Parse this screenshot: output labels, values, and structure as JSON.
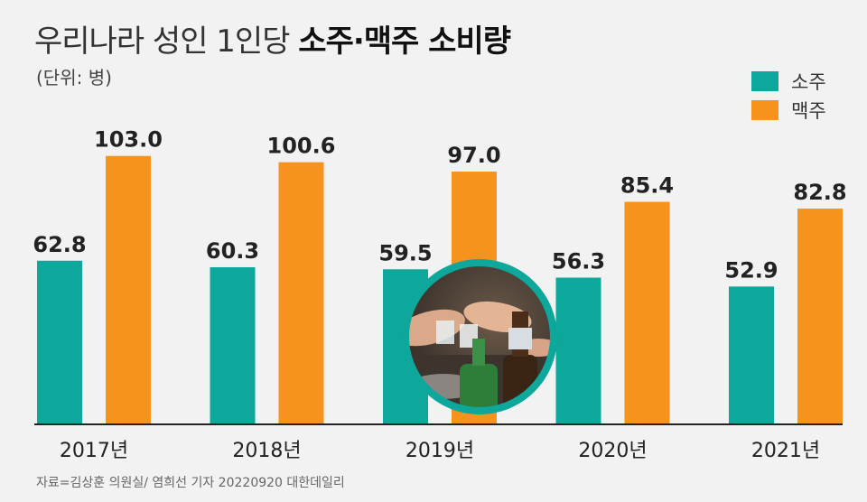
{
  "title": {
    "prefix": "우리나라 성인 1인당 ",
    "bold": "소주·맥주 소비량"
  },
  "unit": "(단위: 병)",
  "source": "자료=김상훈 의원실/ 염희선 기자 20220920 대한데일리",
  "colors": {
    "soju": "#0da79c",
    "beer": "#f6921e",
    "axis": "#222222",
    "photo_ring": "#0da79c"
  },
  "photo": {
    "description_icon": "soju-toast-photo"
  },
  "chart_data": {
    "type": "bar",
    "title": "우리나라 성인 1인당 소주·맥주 소비량",
    "ylabel": "(단위: 병)",
    "xlabel": "",
    "categories": [
      "2017년",
      "2018년",
      "2019년",
      "2020년",
      "2021년"
    ],
    "series": [
      {
        "name": "소주",
        "values": [
          62.8,
          60.3,
          59.5,
          56.3,
          52.9
        ],
        "labels": [
          "62.8",
          "60.3",
          "59.5",
          "56.3",
          "52.9"
        ]
      },
      {
        "name": "맥주",
        "values": [
          103.0,
          100.6,
          97.0,
          85.4,
          82.8
        ],
        "labels": [
          "103.0",
          "100.6",
          "97.0",
          "85.4",
          "82.8"
        ]
      }
    ],
    "ylim": [
      0,
      110
    ],
    "legend": "top-right",
    "grid": false
  }
}
